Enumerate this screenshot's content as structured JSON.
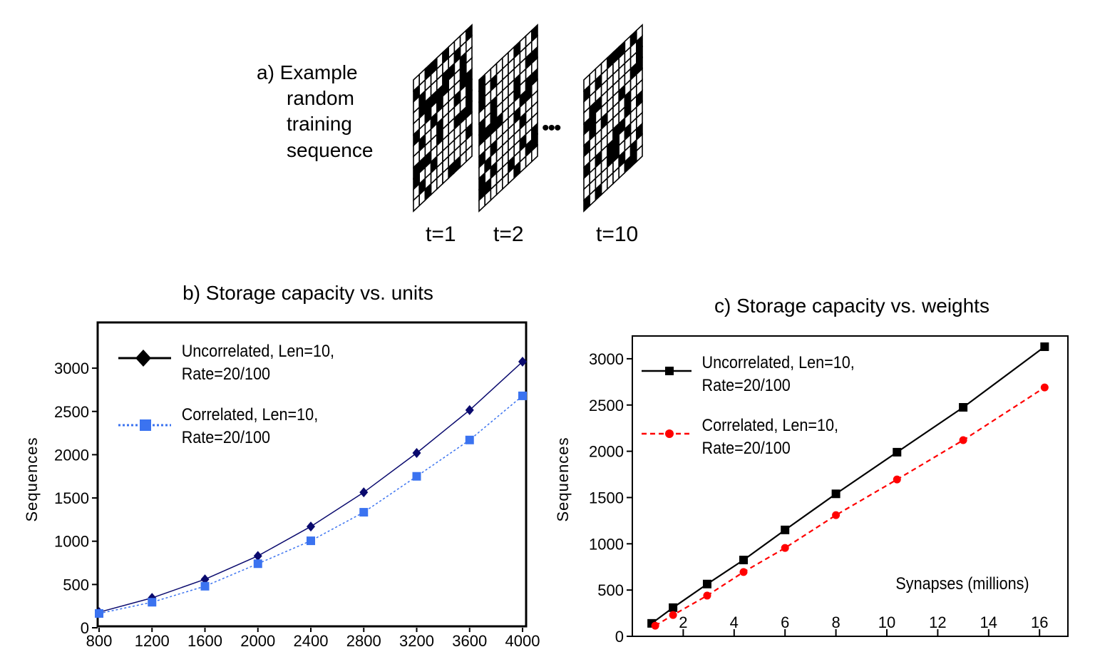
{
  "panel_a": {
    "label_lines": [
      "a) Example",
      "random",
      "training",
      "sequence"
    ],
    "frame_labels": [
      "t=1",
      "t=2",
      "t=10"
    ],
    "ellipsis": "•••"
  },
  "chart_data": [
    {
      "type": "line",
      "title": "b) Storage capacity vs. units",
      "xlabel": "",
      "ylabel": "Sequences",
      "xlim": [
        800,
        4000
      ],
      "ylim": [
        0,
        3400
      ],
      "x_ticks": [
        800,
        1200,
        1600,
        2000,
        2400,
        2800,
        3200,
        3600,
        4000
      ],
      "y_ticks": [
        0,
        500,
        1000,
        1500,
        2000,
        2500,
        3000
      ],
      "grid": false,
      "legend_placement": "top-left",
      "x": [
        800,
        1200,
        1600,
        2000,
        2400,
        2800,
        3200,
        3600,
        4000
      ],
      "series": [
        {
          "name": "Uncorrelated, Len=10, Rate=20/100",
          "legend_lines": [
            "Uncorrelated, Len=10,",
            "Rate=20/100"
          ],
          "color": "#0a0a6e",
          "marker": "diamond",
          "dash": "solid",
          "values": [
            180,
            345,
            560,
            830,
            1170,
            1565,
            2020,
            2515,
            3075
          ]
        },
        {
          "name": "Correlated, Len=10, Rate=20/100",
          "legend_lines": [
            "Correlated, Len=10,",
            "Rate=20/100"
          ],
          "color": "#3b73f0",
          "marker": "square",
          "dash": "dotted",
          "values": [
            165,
            295,
            480,
            740,
            1005,
            1335,
            1750,
            2170,
            2680
          ]
        }
      ]
    },
    {
      "type": "line",
      "title": "c) Storage capacity vs. weights",
      "xlabel": "Synapses (millions)",
      "ylabel": "Sequences",
      "xlim": [
        0,
        17
      ],
      "ylim": [
        0,
        3250
      ],
      "x_ticks": [
        2,
        4,
        6,
        8,
        10,
        12,
        14,
        16
      ],
      "y_ticks": [
        0,
        500,
        1000,
        1500,
        2000,
        2500,
        3000
      ],
      "grid": false,
      "legend_placement": "top-left",
      "series": [
        {
          "name": "Uncorrelated, Len=10, Rate=20/100",
          "legend_lines": [
            "Uncorrelated, Len=10,",
            "Rate=20/100"
          ],
          "color": "#000000",
          "marker": "square",
          "dash": "solid",
          "x": [
            0.76,
            1.6,
            2.94,
            4.37,
            6.0,
            8.0,
            10.4,
            13.0,
            16.2
          ],
          "values": [
            140,
            310,
            565,
            825,
            1150,
            1540,
            1990,
            2475,
            3130
          ]
        },
        {
          "name": "Correlated, Len=10, Rate=20/100",
          "legend_lines": [
            "Correlated, Len=10,",
            "Rate=20/100"
          ],
          "color": "#ff0000",
          "marker": "circle",
          "dash": "dashed",
          "x": [
            0.9,
            1.6,
            2.94,
            4.37,
            6.0,
            8.0,
            10.4,
            13.0,
            16.2
          ],
          "values": [
            115,
            230,
            440,
            695,
            955,
            1310,
            1695,
            2120,
            2690
          ]
        }
      ]
    }
  ]
}
